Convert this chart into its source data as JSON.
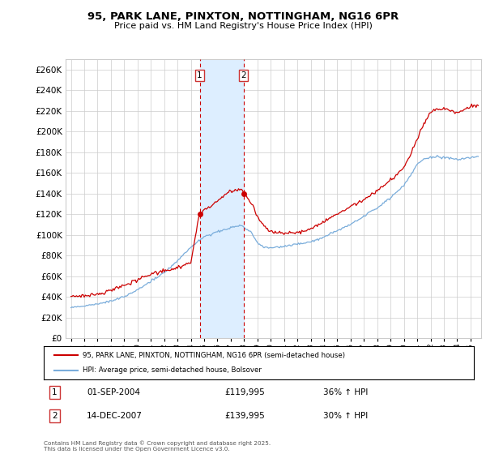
{
  "title1": "95, PARK LANE, PINXTON, NOTTINGHAM, NG16 6PR",
  "title2": "Price paid vs. HM Land Registry's House Price Index (HPI)",
  "legend_line1": "95, PARK LANE, PINXTON, NOTTINGHAM, NG16 6PR (semi-detached house)",
  "legend_line2": "HPI: Average price, semi-detached house, Bolsover",
  "sale1_date": "01-SEP-2004",
  "sale1_price": "£119,995",
  "sale1_hpi": "36% ↑ HPI",
  "sale2_date": "14-DEC-2007",
  "sale2_price": "£139,995",
  "sale2_hpi": "30% ↑ HPI",
  "vline1_x": 2004.67,
  "vline2_x": 2007.96,
  "red_color": "#cc0000",
  "blue_color": "#7aaddb",
  "shading_color": "#ddeeff",
  "copyright": "Contains HM Land Registry data © Crown copyright and database right 2025.\nThis data is licensed under the Open Government Licence v3.0.",
  "ylim_min": 0,
  "ylim_max": 270000,
  "xlim_min": 1994.6,
  "xlim_max": 2025.8,
  "background_color": "#ffffff",
  "grid_color": "#cccccc"
}
